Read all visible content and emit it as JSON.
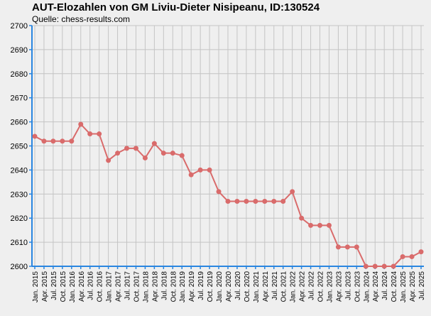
{
  "chart_data": {
    "type": "line",
    "title": "AUT-Elozahlen von GM Liviu-Dieter Nisipeanu, ID:130524",
    "subtitle": "Quelle: chess-results.com",
    "xlabel": "",
    "ylabel": "",
    "ylim": [
      2600,
      2700
    ],
    "yticks": [
      2600,
      2610,
      2620,
      2630,
      2640,
      2650,
      2660,
      2670,
      2680,
      2690,
      2700
    ],
    "grid": true,
    "categories": [
      "Jan. 2015",
      "Apr. 2015",
      "Jul. 2015",
      "Oct. 2015",
      "Jan. 2016",
      "Apr. 2016",
      "Jul. 2016",
      "Oct. 2016",
      "Jan. 2017",
      "Apr. 2017",
      "Jul. 2017",
      "Oct. 2017",
      "Jan. 2018",
      "Apr. 2018",
      "Jul. 2018",
      "Oct. 2018",
      "Jan. 2019",
      "Apr. 2019",
      "Jul. 2019",
      "Oct. 2019",
      "Jan. 2020",
      "Apr. 2020",
      "Jul. 2020",
      "Oct. 2020",
      "Jan. 2021",
      "Apr. 2021",
      "Jul. 2021",
      "Oct. 2021",
      "Jan. 2022",
      "Apr. 2022",
      "Jul. 2022",
      "Oct. 2022",
      "Jan. 2023",
      "Apr. 2023",
      "Jul. 2023",
      "Oct. 2023",
      "Jan. 2024",
      "Apr. 2024",
      "Jul. 2024",
      "Oct. 2024",
      "Jan. 2025",
      "Apr. 2025",
      "Jul. 2025"
    ],
    "series": [
      {
        "values": [
          2654,
          2652,
          2652,
          2652,
          2652,
          2659,
          2655,
          2655,
          2644,
          2647,
          2649,
          2649,
          2645,
          2651,
          2647,
          2647,
          2646,
          2638,
          2640,
          2640,
          2631,
          2627,
          2627,
          2627,
          2627,
          2627,
          2627,
          2627,
          2631,
          2620,
          2617,
          2617,
          2617,
          2608,
          2608,
          2608,
          2600,
          2600,
          2600,
          2600,
          2604,
          2604,
          2606
        ]
      }
    ],
    "colors": {
      "line": "#d96b6b",
      "marker": "#d96b6b",
      "axis": "#2a86e0",
      "grid": "#c4c4c4",
      "background": "#efefef"
    }
  }
}
